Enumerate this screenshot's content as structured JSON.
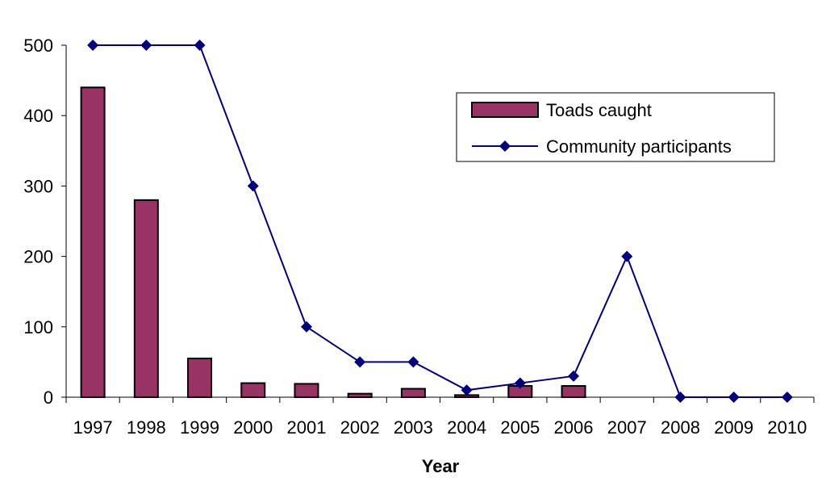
{
  "chart_data": {
    "type": "bar+line",
    "title": "",
    "xlabel": "Year",
    "ylabel": "",
    "ylim": [
      0,
      500
    ],
    "yticks": [
      0,
      100,
      200,
      300,
      400,
      500
    ],
    "categories": [
      "1997",
      "1998",
      "1999",
      "2000",
      "2001",
      "2002",
      "2003",
      "2004",
      "2005",
      "2006",
      "2007",
      "2008",
      "2009",
      "2010"
    ],
    "series": [
      {
        "name": "Toads caught",
        "type": "bar",
        "color": "#993366",
        "values": [
          440,
          280,
          55,
          20,
          19,
          5,
          12,
          3,
          16,
          16,
          0,
          0,
          0,
          0
        ]
      },
      {
        "name": "Community participants",
        "type": "line",
        "color": "#000080",
        "marker": "diamond",
        "values": [
          500,
          500,
          500,
          300,
          100,
          50,
          50,
          10,
          20,
          30,
          200,
          0,
          0,
          0
        ]
      }
    ],
    "grid": false,
    "legend": "top-right"
  }
}
